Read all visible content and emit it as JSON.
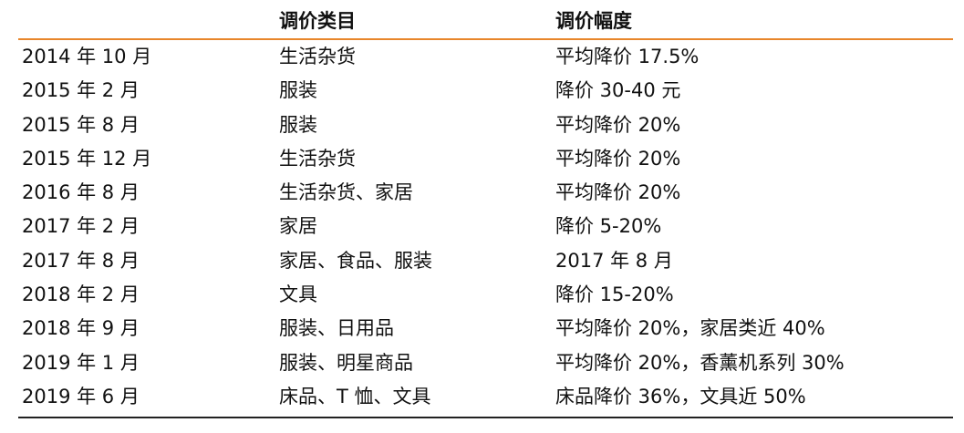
{
  "table": {
    "headers": [
      "",
      "调价类目",
      "调价幅度"
    ],
    "rows": [
      [
        "2014 年 10 月",
        "生活杂货",
        "平均降价 17.5%"
      ],
      [
        "2015 年 2 月",
        "服装",
        "降价 30-40 元"
      ],
      [
        "2015 年 8 月",
        "服装",
        "平均降价 20%"
      ],
      [
        "2015 年 12 月",
        "生活杂货",
        "平均降价 20%"
      ],
      [
        "2016 年 8 月",
        "生活杂货、家居",
        "平均降价 20%"
      ],
      [
        "2017 年 2 月",
        "家居",
        "降价 5-20%"
      ],
      [
        "2017 年 8 月",
        "家居、食品、服装",
        "2017 年 8 月"
      ],
      [
        "2018 年 2 月",
        "文具",
        "降价 15-20%"
      ],
      [
        "2018 年 9 月",
        "服装、日用品",
        "平均降价 20%，家居类近 40%"
      ],
      [
        "2019 年 1 月",
        "服装、明星商品",
        "平均降价 20%，香薰机系列 30%"
      ],
      [
        "2019 年 6 月",
        "床品、T 恤、文具",
        "床品降价 36%，文具近 50%"
      ]
    ]
  },
  "colors": {
    "header_rule": "#E8862A",
    "bottom_rule": "#222222",
    "text": "#111111"
  }
}
